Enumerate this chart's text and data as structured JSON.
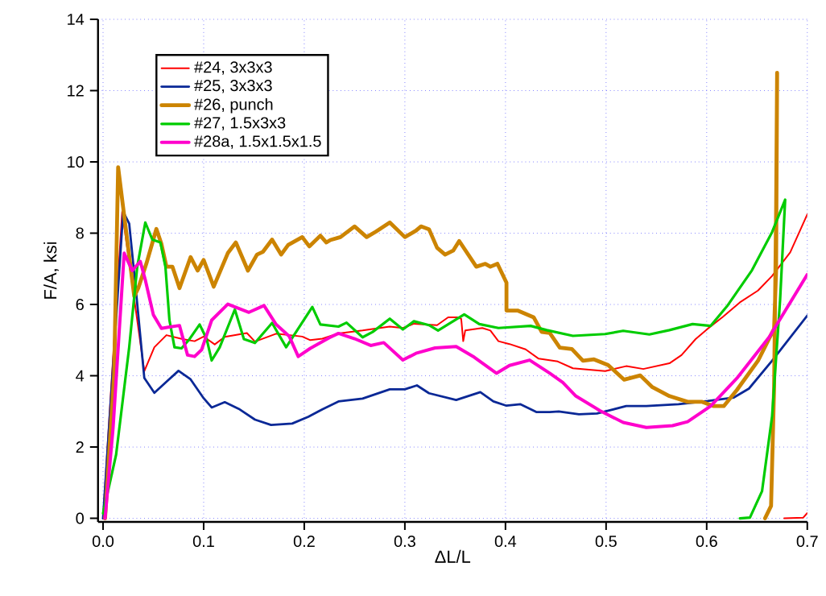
{
  "chart_data": {
    "type": "line",
    "xlabel": "ΔL/L",
    "ylabel": "F/A,  ksi",
    "xlim": [
      -0.005,
      0.7
    ],
    "ylim": [
      -0.1,
      14
    ],
    "xticks": [
      {
        "value": 0,
        "label": "0.0"
      },
      {
        "value": 0.1,
        "label": "0.1"
      },
      {
        "value": 0.2,
        "label": "0.2"
      },
      {
        "value": 0.3,
        "label": "0.3"
      },
      {
        "value": 0.4,
        "label": "0.4"
      },
      {
        "value": 0.5,
        "label": "0.5"
      },
      {
        "value": 0.6,
        "label": "0.6"
      },
      {
        "value": 0.7,
        "label": "0.7"
      }
    ],
    "yticks": [
      0,
      2,
      4,
      6,
      8,
      10,
      12,
      14
    ],
    "grid": true,
    "legend": "top left",
    "marker": "none",
    "series": [
      {
        "name": "#24, 3x3x3",
        "color": "#ff0000",
        "x": [
          0,
          0.019,
          0.041,
          0.051,
          0.063,
          0.079,
          0.091,
          0.1,
          0.111,
          0.121,
          0.143,
          0.151,
          0.172,
          0.198,
          0.206,
          0.218,
          0.234,
          0.258,
          0.285,
          0.298,
          0.309,
          0.332,
          0.343,
          0.352,
          0.356,
          0.358,
          0.36,
          0.377,
          0.385,
          0.393,
          0.404,
          0.42,
          0.433,
          0.452,
          0.467,
          0.499,
          0.52,
          0.537,
          0.563,
          0.575,
          0.589,
          0.601,
          0.616,
          0.633,
          0.651,
          0.665,
          0.683,
          0.7,
          null,
          0.677,
          0.696,
          0.7
        ],
        "values": [
          0,
          8.6,
          4.13,
          4.8,
          5.14,
          5.03,
          4.97,
          5.1,
          4.88,
          5.09,
          5.2,
          4.96,
          5.18,
          5.1,
          5.0,
          5.04,
          5.19,
          5.27,
          5.38,
          5.34,
          5.46,
          5.42,
          5.64,
          5.64,
          5.6,
          4.97,
          5.27,
          5.34,
          5.27,
          4.97,
          4.89,
          4.74,
          4.48,
          4.4,
          4.21,
          4.13,
          4.27,
          4.19,
          4.35,
          4.58,
          5.03,
          5.32,
          5.65,
          6.06,
          6.39,
          6.8,
          7.46,
          8.53,
          null,
          0,
          0.02,
          0.15
        ]
      },
      {
        "name": "#25, 3x3x3",
        "color": "#0a2896",
        "x": [
          0,
          0.02,
          0.026,
          0.033,
          0.041,
          0.051,
          0.063,
          0.075,
          0.087,
          0.1,
          0.108,
          0.121,
          0.135,
          0.151,
          0.167,
          0.188,
          0.204,
          0.218,
          0.234,
          0.258,
          0.285,
          0.3,
          0.312,
          0.324,
          0.351,
          0.375,
          0.388,
          0.401,
          0.415,
          0.431,
          0.444,
          0.453,
          0.473,
          0.491,
          0.52,
          0.54,
          0.572,
          0.601,
          0.627,
          0.642,
          0.665,
          0.7
        ],
        "values": [
          0,
          8.6,
          8.27,
          6.31,
          3.94,
          3.52,
          3.83,
          4.14,
          3.9,
          3.37,
          3.11,
          3.26,
          3.07,
          2.77,
          2.62,
          2.66,
          2.85,
          3.06,
          3.28,
          3.36,
          3.62,
          3.62,
          3.73,
          3.51,
          3.32,
          3.54,
          3.28,
          3.16,
          3.2,
          2.98,
          2.98,
          3.0,
          2.92,
          2.94,
          3.15,
          3.15,
          3.2,
          3.29,
          3.39,
          3.64,
          4.42,
          5.69
        ]
      },
      {
        "name": "#26,  punch",
        "color": "#cc8400",
        "x": [
          0.002,
          0.011,
          0.015,
          0.031,
          0.035,
          0.043,
          0.053,
          0.058,
          0.063,
          0.069,
          0.076,
          0.087,
          0.094,
          0.1,
          0.11,
          0.124,
          0.132,
          0.144,
          0.153,
          0.159,
          0.168,
          0.177,
          0.184,
          0.198,
          0.205,
          0.216,
          0.222,
          0.226,
          0.236,
          0.25,
          0.262,
          0.271,
          0.285,
          0.3,
          0.311,
          0.316,
          0.324,
          0.332,
          0.34,
          0.348,
          0.354,
          0.371,
          0.38,
          0.385,
          0.392,
          0.401,
          0.401,
          0.412,
          0.428,
          0.436,
          0.444,
          0.454,
          0.466,
          0.477,
          0.488,
          0.502,
          0.518,
          0.534,
          0.546,
          0.563,
          0.581,
          0.595,
          0.607,
          0.617,
          0.63,
          0.651,
          0.667,
          0.669,
          0.67,
          0.669,
          0.667,
          0.664,
          0.658
        ],
        "values": [
          0,
          4.05,
          9.85,
          6.23,
          6.46,
          7.14,
          8.12,
          7.7,
          7.06,
          7.06,
          6.46,
          7.33,
          6.95,
          7.25,
          6.5,
          7.44,
          7.74,
          6.95,
          7.4,
          7.48,
          7.82,
          7.4,
          7.67,
          7.89,
          7.63,
          7.93,
          7.74,
          7.81,
          7.89,
          8.19,
          7.89,
          8.04,
          8.3,
          7.89,
          8.07,
          8.19,
          8.11,
          7.59,
          7.4,
          7.51,
          7.78,
          7.06,
          7.14,
          7.06,
          7.14,
          6.61,
          5.83,
          5.83,
          5.64,
          5.23,
          5.2,
          4.79,
          4.75,
          4.42,
          4.46,
          4.3,
          3.89,
          4.01,
          3.68,
          3.43,
          3.27,
          3.27,
          3.15,
          3.15,
          3.6,
          4.42,
          5.32,
          6.96,
          12.5,
          8.61,
          3.68,
          0.35,
          0
        ]
      },
      {
        "name": "#27, 1.5x3x3",
        "color": "#00cc00",
        "x": [
          0,
          0.013,
          0.026,
          0.034,
          0.042,
          0.049,
          0.057,
          0.062,
          0.066,
          0.071,
          0.078,
          0.086,
          0.096,
          0.103,
          0.108,
          0.116,
          0.131,
          0.14,
          0.151,
          0.168,
          0.182,
          0.208,
          0.216,
          0.234,
          0.242,
          0.258,
          0.268,
          0.285,
          0.298,
          0.309,
          0.324,
          0.333,
          0.359,
          0.374,
          0.393,
          0.425,
          0.441,
          0.467,
          0.499,
          0.517,
          0.543,
          0.563,
          0.586,
          0.604,
          0.621,
          0.645,
          0.665,
          0.678,
          0.673,
          0.665,
          0.655,
          0.643,
          0.633
        ],
        "values": [
          0.14,
          1.79,
          4.8,
          7.06,
          8.3,
          7.82,
          7.74,
          7.06,
          5.56,
          4.8,
          4.77,
          5.03,
          5.44,
          5.03,
          4.43,
          4.8,
          5.86,
          5.03,
          4.92,
          5.48,
          4.8,
          5.93,
          5.44,
          5.38,
          5.49,
          5.08,
          5.23,
          5.6,
          5.3,
          5.53,
          5.42,
          5.27,
          5.72,
          5.45,
          5.34,
          5.4,
          5.28,
          5.12,
          5.17,
          5.26,
          5.16,
          5.28,
          5.45,
          5.4,
          5.98,
          6.96,
          8.03,
          8.94,
          6.14,
          2.86,
          0.76,
          0.02,
          0
        ]
      },
      {
        "name": "#28a, 1.5x1.5x1.5",
        "color": "#ff00cc",
        "x": [
          0.002,
          0.01,
          0.021,
          0.029,
          0.037,
          0.042,
          0.05,
          0.058,
          0.066,
          0.076,
          0.084,
          0.091,
          0.098,
          0.108,
          0.124,
          0.145,
          0.16,
          0.172,
          0.185,
          0.194,
          0.206,
          0.225,
          0.234,
          0.25,
          0.266,
          0.279,
          0.298,
          0.311,
          0.33,
          0.351,
          0.369,
          0.391,
          0.404,
          0.424,
          0.444,
          0.457,
          0.47,
          0.494,
          0.517,
          0.54,
          0.566,
          0.581,
          0.604,
          0.63,
          0.662,
          0.7
        ],
        "values": [
          0,
          2.55,
          7.44,
          6.95,
          7.21,
          6.69,
          5.71,
          5.33,
          5.37,
          5.41,
          4.58,
          4.54,
          4.73,
          5.56,
          6.01,
          5.78,
          5.97,
          5.44,
          5.11,
          4.54,
          4.77,
          5.07,
          5.19,
          5.04,
          4.85,
          4.93,
          4.44,
          4.63,
          4.78,
          4.82,
          4.52,
          4.07,
          4.29,
          4.44,
          4.07,
          3.81,
          3.43,
          3.02,
          2.69,
          2.55,
          2.6,
          2.71,
          3.15,
          3.93,
          5.08,
          6.84
        ]
      }
    ]
  }
}
